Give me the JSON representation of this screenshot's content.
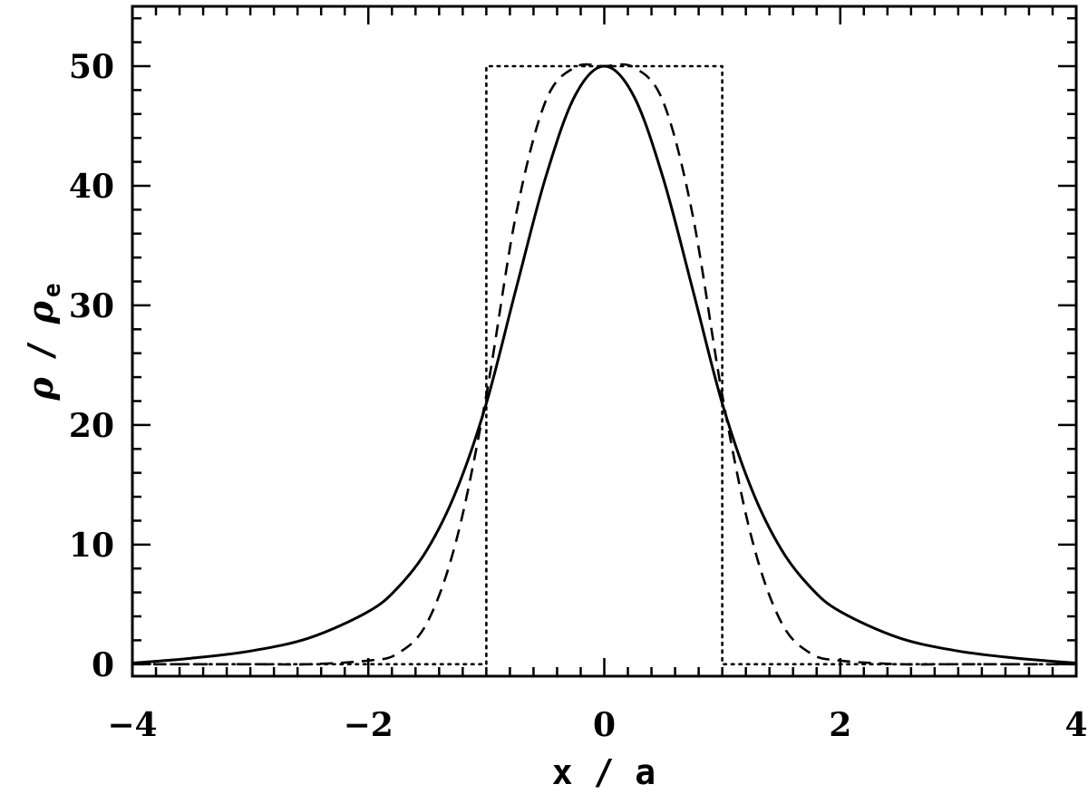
{
  "chart_data": {
    "type": "line",
    "xlabel": "x / a",
    "ylabel": {
      "symbol": "ρ",
      "separator": "/",
      "sub": "e"
    },
    "xlim": [
      -4,
      4
    ],
    "ylim": [
      -1,
      55
    ],
    "x_ticks": [
      -4,
      -2,
      0,
      2,
      4
    ],
    "x_tick_labels": [
      "−4",
      "−2",
      "0",
      "2",
      "4"
    ],
    "y_ticks": [
      0,
      10,
      20,
      30,
      40,
      50
    ],
    "y_tick_labels": [
      "0",
      "10",
      "20",
      "30",
      "40",
      "50"
    ],
    "grid": false,
    "legend": "none",
    "series": [
      {
        "style": "solid",
        "x": [
          -4,
          -3.5,
          -3,
          -2.5,
          -2,
          -1.75,
          -1.5,
          -1.25,
          -1,
          -0.75,
          -0.5,
          -0.25,
          0,
          0.25,
          0.5,
          0.75,
          1,
          1.25,
          1.5,
          1.75,
          2,
          2.5,
          3,
          3.5,
          4
        ],
        "y": [
          0.1,
          0.5,
          1.1,
          2.2,
          4.4,
          6.4,
          9.6,
          14.6,
          21.8,
          31.3,
          40.6,
          47.5,
          50,
          47.5,
          40.6,
          31.3,
          21.8,
          14.6,
          9.6,
          6.4,
          4.4,
          2.2,
          1.1,
          0.5,
          0.1
        ]
      },
      {
        "style": "dashed",
        "x": [
          -4,
          -3,
          -2.5,
          -2,
          -1.75,
          -1.5,
          -1.25,
          -1,
          -0.75,
          -0.5,
          -0.25,
          0,
          0.25,
          0.5,
          0.75,
          1,
          1.25,
          1.5,
          1.75,
          2,
          2.5,
          3,
          4
        ],
        "y": [
          0,
          0,
          0,
          0.3,
          0.9,
          3.5,
          10.5,
          22.5,
          37.5,
          47,
          49.9,
          50,
          49.9,
          47,
          37.5,
          22.5,
          10.5,
          3.5,
          0.9,
          0.3,
          0,
          0,
          0
        ]
      },
      {
        "style": "dotted",
        "x": [
          -4,
          -1,
          -1,
          1,
          1,
          4
        ],
        "y": [
          0,
          0,
          50,
          50,
          0,
          0
        ]
      }
    ]
  }
}
